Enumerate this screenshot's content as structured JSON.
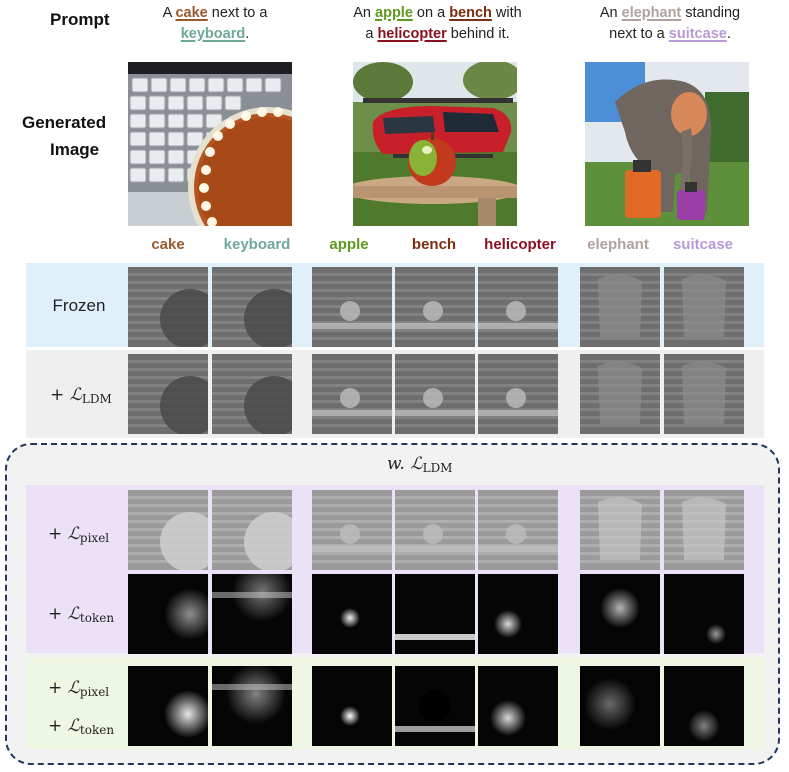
{
  "header": {
    "prompt_label": "Prompt",
    "generated_label_line1": "Generated",
    "generated_label_line2": "Image"
  },
  "prompts": [
    {
      "line1_pre": "A ",
      "line1_kw": "cake",
      "line1_post": " next to a",
      "line2_pre": "",
      "line2_kw": "keyboard",
      "line2_post": ".",
      "colors": [
        "#9a5a2e",
        "#6fa89a"
      ]
    },
    {
      "line1_pre": "An ",
      "line1_kw": "apple",
      "line1_mid": " on a ",
      "line1_kw2": "bench",
      "line1_post": " with",
      "line2_pre": "a ",
      "line2_kw": "helicopter",
      "line2_post": " behind it.",
      "colors": [
        "#5e9a1e",
        "#7a2e12",
        "#8a1020"
      ]
    },
    {
      "line1_pre": "An ",
      "line1_kw": "elephant",
      "line1_post": " standing",
      "line2_pre": "next to  a ",
      "line2_kw": "suitcase",
      "line2_post": ".",
      "colors": [
        "#b0a29c",
        "#b79ad6"
      ]
    }
  ],
  "tokens": [
    {
      "text": "cake",
      "color": "#9a5a2e"
    },
    {
      "text": "keyboard",
      "color": "#6fa89a"
    },
    {
      "text": "apple",
      "color": "#5e9a1e"
    },
    {
      "text": "bench",
      "color": "#7a2e12"
    },
    {
      "text": "helicopter",
      "color": "#8a1020"
    },
    {
      "text": "elephant",
      "color": "#b0a29c"
    },
    {
      "text": "suitcase",
      "color": "#b79ad6"
    }
  ],
  "rows": {
    "frozen": "Frozen",
    "ldm_plus": "+ ",
    "ldm_sub": "LDM",
    "group_title_prefix": "w. ",
    "group_title_sub": "LDM",
    "pixel_sub": "pixel",
    "token_sub": "token",
    "plus": "+ "
  },
  "colors": {
    "frozen_bg": "#dff0fb",
    "ldm_bg": "#efefef",
    "group_bg": "#f2f2f2",
    "group_border": "#22385a",
    "lavender_bg": "#ece2f7",
    "green_bg": "#eef7e4"
  }
}
